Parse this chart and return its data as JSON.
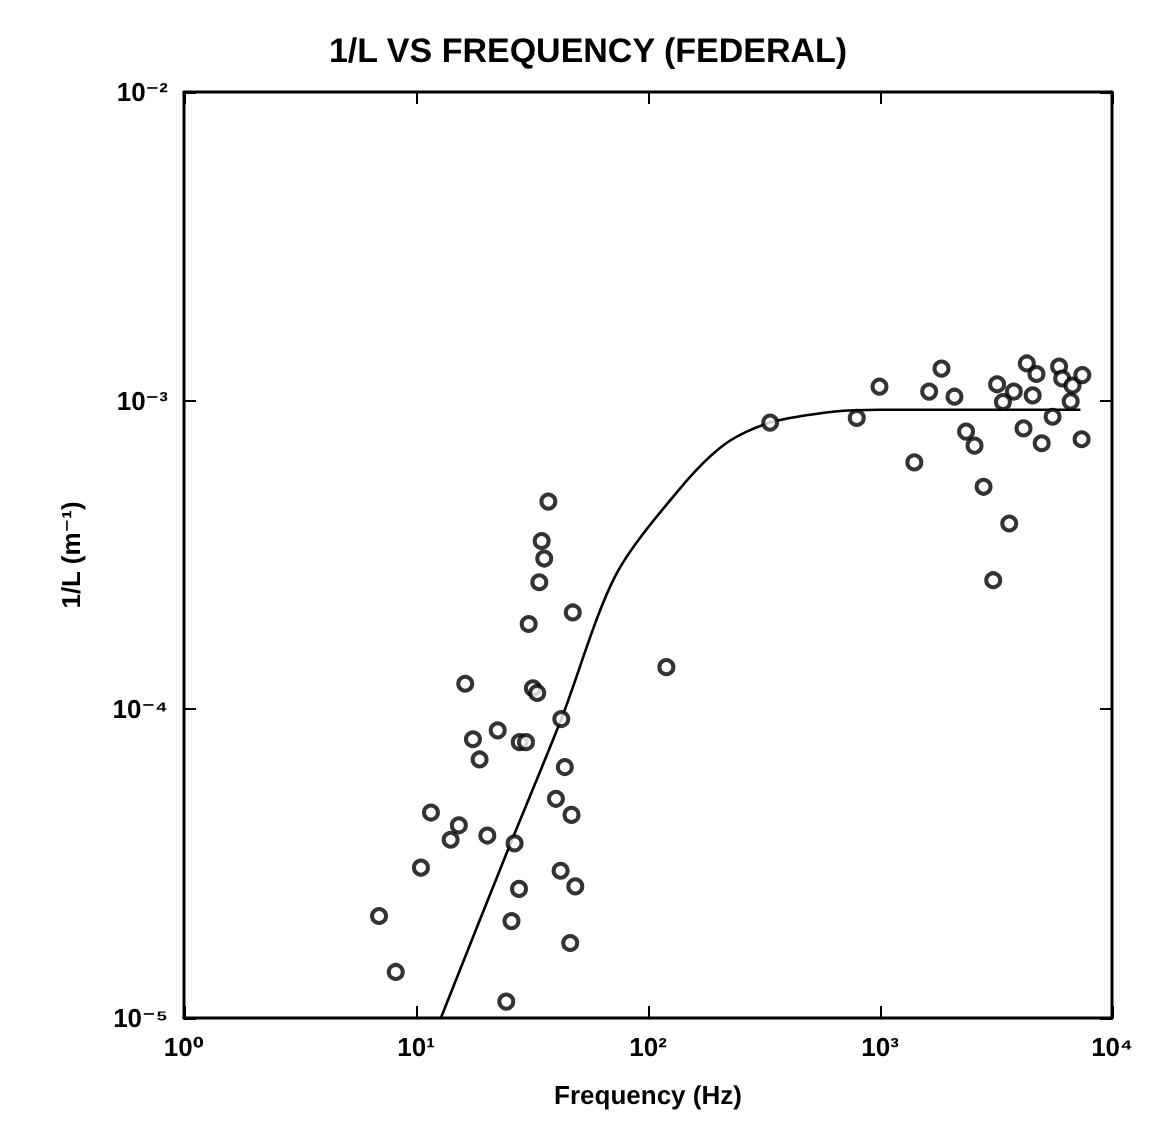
{
  "chart_data": {
    "type": "scatter",
    "title": "1/L VS FREQUENCY (FEDERAL)",
    "xlabel": "Frequency (Hz)",
    "ylabel": "1/L (m⁻¹)",
    "log": "xy",
    "marker": "circle",
    "xlim": [
      1,
      10000
    ],
    "ylim": [
      1e-05,
      0.01
    ],
    "xticks": [
      {
        "value": 1,
        "label": "10⁰"
      },
      {
        "value": 10,
        "label": "10¹"
      },
      {
        "value": 100,
        "label": "10²"
      },
      {
        "value": 1000,
        "label": "10³"
      },
      {
        "value": 10000,
        "label": "10⁴"
      }
    ],
    "yticks": [
      {
        "value": 1e-05,
        "label": "10⁻⁵"
      },
      {
        "value": 0.0001,
        "label": "10⁻⁴"
      },
      {
        "value": 0.001,
        "label": "10⁻³"
      },
      {
        "value": 0.01,
        "label": "10⁻²"
      }
    ],
    "series": [
      {
        "color": "#000000",
        "x": [
          37.2,
          34.8,
          35.7,
          34.0,
          47.4,
          30.6,
          120,
          16.3,
          31.9,
          33.3,
          42.3,
          22.5,
          17.6,
          28.0,
          29.8,
          18.8,
          43.8,
          40.1,
          46.8,
          11.6,
          15.3,
          14.1,
          20.3,
          26.6,
          10.5,
          42.0,
          48.6,
          27.8,
          6.93,
          25.8,
          46.2,
          8.18,
          24.5,
          336,
          794,
          995,
          1841,
          1629,
          2094,
          1406,
          2350,
          2555,
          2795,
          3607,
          3076,
          3197,
          3774,
          3388,
          4295,
          4726,
          4550,
          4155,
          4977,
          5546,
          5915,
          6099,
          6757,
          7447,
          6637,
          7396
        ],
        "values": [
          0.000471,
          0.000351,
          0.000308,
          0.000258,
          0.000206,
          0.000189,
          0.000137,
          0.000121,
          0.000117,
          0.000113,
          9.3e-05,
          8.55e-05,
          8e-05,
          7.83e-05,
          7.83e-05,
          6.88e-05,
          6.5e-05,
          5.13e-05,
          4.55e-05,
          4.63e-05,
          4.21e-05,
          3.78e-05,
          3.9e-05,
          3.68e-05,
          3.07e-05,
          3e-05,
          2.67e-05,
          2.62e-05,
          2.14e-05,
          2.06e-05,
          1.75e-05,
          1.41e-05,
          1.13e-05,
          0.000849,
          0.000879,
          0.00111,
          0.00127,
          0.00107,
          0.00103,
          0.000631,
          0.000794,
          0.000715,
          0.000526,
          0.0004,
          0.000262,
          0.00113,
          0.00107,
          0.00099,
          0.00132,
          0.00122,
          0.00104,
          0.000813,
          0.000728,
          0.000887,
          0.00129,
          0.00118,
          0.00112,
          0.00121,
          0.000995,
          0.00075
        ]
      },
      {
        "type": "line",
        "color": "#000000",
        "marker": "none",
        "line_style": "solid",
        "x": [
          12.8,
          24.3,
          42.3,
          72.4,
          137,
          215,
          336,
          640,
          1000,
          7310
        ],
        "values": [
          1e-05,
          3.35e-05,
          9.3e-05,
          0.000271,
          0.000518,
          0.000724,
          0.000849,
          0.000922,
          0.000935,
          0.000935
        ]
      }
    ]
  }
}
